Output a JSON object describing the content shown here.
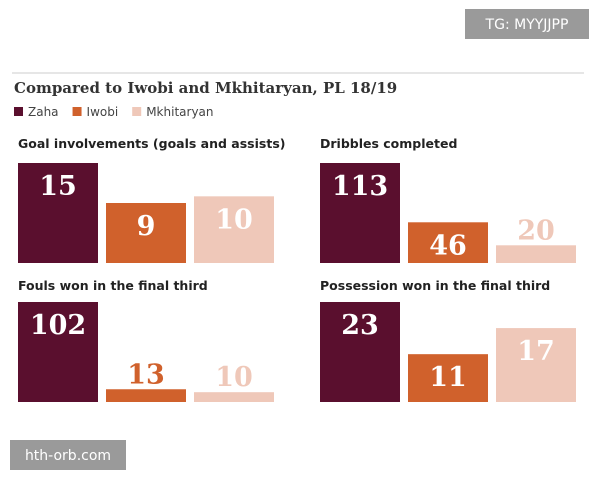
{
  "title": "Compared to Iwobi and Mkhitaryan, PL 18/19",
  "legend": [
    {
      "name": "Zaha",
      "color": "#5a0f2e"
    },
    {
      "name": "Iwobi",
      "color": "#d0612c"
    },
    {
      "name": "Mkhitaryan",
      "color": "#efc8b9"
    }
  ],
  "watermarks": [
    "TG: MYYJJPP",
    "hth-orb.com"
  ],
  "chart_data": [
    {
      "type": "bar",
      "title": "Goal involvements (goals and assists)",
      "values": [
        15,
        9,
        10
      ]
    },
    {
      "type": "bar",
      "title": "Dribbles completed",
      "values": [
        113,
        46,
        20
      ]
    },
    {
      "type": "bar",
      "title": "Fouls won in the final third",
      "values": [
        102,
        13,
        10
      ]
    },
    {
      "type": "bar",
      "title": "Possession won in the final third",
      "values": [
        23,
        11,
        17
      ]
    }
  ]
}
